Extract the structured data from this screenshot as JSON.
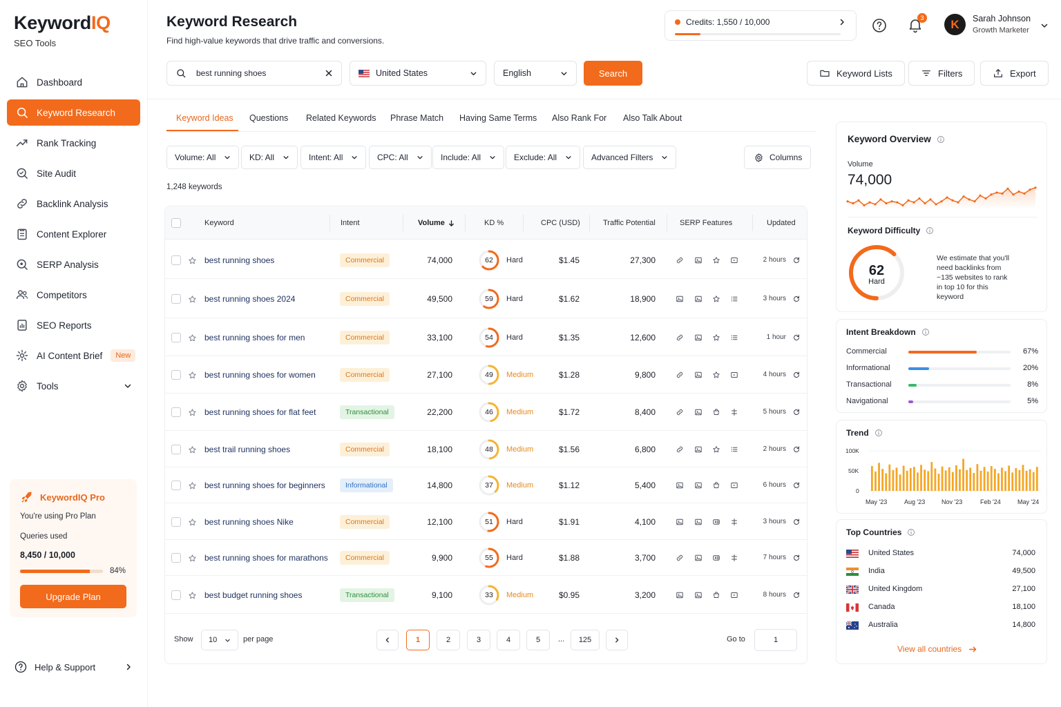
{
  "brand": {
    "name_main": "Keyword",
    "name_accent": "IQ",
    "subtitle": "SEO Tools"
  },
  "nav": {
    "items": [
      {
        "label": "Dashboard",
        "icon": "home-icon"
      },
      {
        "label": "Keyword Research",
        "icon": "search-icon",
        "active": true
      },
      {
        "label": "Rank Tracking",
        "icon": "trend-up-icon"
      },
      {
        "label": "Site Audit",
        "icon": "site-audit-icon"
      },
      {
        "label": "Backlink Analysis",
        "icon": "link-icon"
      },
      {
        "label": "Content Explorer",
        "icon": "document-icon"
      },
      {
        "label": "SERP Analysis",
        "icon": "serp-search-icon"
      },
      {
        "label": "Competitors",
        "icon": "users-icon"
      },
      {
        "label": "SEO Reports",
        "icon": "report-icon"
      },
      {
        "label": "AI Content Brief",
        "icon": "ai-brief-icon",
        "badge": "New"
      },
      {
        "label": "Tools",
        "icon": "tools-icon"
      }
    ]
  },
  "pro": {
    "title": "KeywordIQ Pro",
    "plan_text": "You're using Pro Plan",
    "queries_label": "Queries used",
    "queries_count": "8,450 / 10,000",
    "queries_pct": "84%",
    "queries_fraction": 0.84,
    "upgrade_label": "Upgrade Plan"
  },
  "help_label": "Help & Support",
  "header": {
    "title": "Keyword Research",
    "subtitle": "Find high-value keywords that drive traffic and conversions.",
    "credits_label": "Credits: 1,550 / 10,000",
    "credits_fraction": 0.155,
    "notification_count": "3",
    "avatar_letter": "K",
    "user_name": "Sarah Johnson",
    "user_role": "Growth Marketer"
  },
  "search": {
    "query": "best running shoes",
    "country": "United States",
    "language": "English",
    "button": "Search"
  },
  "toolbar": {
    "keyword_lists": "Keyword Lists",
    "filters": "Filters",
    "export": "Export"
  },
  "tabs": [
    "Keyword Ideas",
    "Questions",
    "Related Keywords",
    "Phrase Match",
    "Having Same Terms",
    "Also Rank For",
    "Also Talk About"
  ],
  "filters": [
    "Volume: All",
    "KD: All",
    "Intent: All",
    "CPC: All",
    "Include: All",
    "Exclude: All",
    "Advanced Filters"
  ],
  "columns_label": "Columns",
  "keyword_count": "1,248 keywords",
  "table": {
    "headers": {
      "keyword": "Keyword",
      "intent": "Intent",
      "volume": "Volume",
      "kd": "KD %",
      "cpc": "CPC (USD)",
      "traffic": "Traffic Potential",
      "serp": "SERP Features",
      "updated": "Updated"
    },
    "rows": [
      {
        "keyword": "best running shoes",
        "intent": "Commercial",
        "volume": "74,000",
        "kd": "62",
        "kd_label": "Hard",
        "cpc": "$1.45",
        "traffic": "27,300",
        "updated": "2 hours",
        "serp": [
          "link-icon",
          "image-icon",
          "star-icon",
          "video-icon"
        ]
      },
      {
        "keyword": "best running shoes 2024",
        "intent": "Commercial",
        "volume": "49,500",
        "kd": "59",
        "kd_label": "Hard",
        "cpc": "$1.62",
        "traffic": "18,900",
        "updated": "3 hours",
        "serp": [
          "image-icon",
          "image-icon",
          "star-icon",
          "list-icon"
        ]
      },
      {
        "keyword": "best running shoes for men",
        "intent": "Commercial",
        "volume": "33,100",
        "kd": "54",
        "kd_label": "Hard",
        "cpc": "$1.35",
        "traffic": "12,600",
        "updated": "1 hour",
        "serp": [
          "link-icon",
          "image-icon",
          "star-icon",
          "list-icon"
        ]
      },
      {
        "keyword": "best running shoes for women",
        "intent": "Commercial",
        "volume": "27,100",
        "kd": "49",
        "kd_label": "Medium",
        "cpc": "$1.28",
        "traffic": "9,800",
        "updated": "4 hours",
        "serp": [
          "link-icon",
          "image-icon",
          "star-icon",
          "video-icon"
        ]
      },
      {
        "keyword": "best running shoes for flat feet",
        "intent": "Transactional",
        "volume": "22,200",
        "kd": "46",
        "kd_label": "Medium",
        "cpc": "$1.72",
        "traffic": "8,400",
        "updated": "5 hours",
        "serp": [
          "link-icon",
          "image-icon",
          "shopping-icon",
          "sitelinks-icon"
        ]
      },
      {
        "keyword": "best trail running shoes",
        "intent": "Commercial",
        "volume": "18,100",
        "kd": "48",
        "kd_label": "Medium",
        "cpc": "$1.56",
        "traffic": "6,800",
        "updated": "2 hours",
        "serp": [
          "link-icon",
          "image-icon",
          "star-icon",
          "list-icon"
        ]
      },
      {
        "keyword": "best running shoes for beginners",
        "intent": "Informational",
        "volume": "14,800",
        "kd": "37",
        "kd_label": "Medium",
        "cpc": "$1.12",
        "traffic": "5,400",
        "updated": "6 hours",
        "serp": [
          "image-icon",
          "image-icon",
          "shopping-icon",
          "video-icon"
        ]
      },
      {
        "keyword": "best running shoes Nike",
        "intent": "Commercial",
        "volume": "12,100",
        "kd": "51",
        "kd_label": "Hard",
        "cpc": "$1.91",
        "traffic": "4,100",
        "updated": "3 hours",
        "serp": [
          "image-icon",
          "image-icon",
          "ad-icon",
          "sitelinks-icon"
        ]
      },
      {
        "keyword": "best running shoes for marathons",
        "intent": "Commercial",
        "volume": "9,900",
        "kd": "55",
        "kd_label": "Hard",
        "cpc": "$1.88",
        "traffic": "3,700",
        "updated": "7 hours",
        "serp": [
          "link-icon",
          "image-icon",
          "ad-icon",
          "sitelinks-icon"
        ]
      },
      {
        "keyword": "best budget running shoes",
        "intent": "Transactional",
        "volume": "9,100",
        "kd": "33",
        "kd_label": "Medium",
        "cpc": "$0.95",
        "traffic": "3,200",
        "updated": "8 hours",
        "serp": [
          "image-icon",
          "image-icon",
          "shopping-icon",
          "video-icon"
        ]
      }
    ]
  },
  "pagination": {
    "show_label": "Show",
    "per_page_value": "10",
    "per_page_label": "per page",
    "pages": [
      "1",
      "2",
      "3",
      "4",
      "5"
    ],
    "ellipsis": "...",
    "last_page": "125",
    "goto_label": "Go to",
    "goto_value": "1"
  },
  "overview": {
    "title": "Keyword Overview",
    "volume_label": "Volume",
    "volume_value": "74,000",
    "sparkline": [
      40,
      38,
      41,
      36,
      39,
      37,
      42,
      38,
      40,
      39,
      36,
      41,
      39,
      43,
      38,
      42,
      37,
      40,
      44,
      41,
      39,
      45,
      42,
      40,
      46,
      43,
      47,
      49,
      48,
      53,
      47,
      50,
      48,
      52,
      54
    ],
    "difficulty_title": "Keyword Difficulty",
    "difficulty_value": "62",
    "difficulty_score": 62,
    "difficulty_label": "Hard",
    "difficulty_note": "We estimate that you'll need backlinks from ~135 websites to rank in top 10 for this keyword"
  },
  "intent_breakdown": {
    "title": "Intent Breakdown",
    "items": [
      {
        "name": "Commercial",
        "pct": "67%",
        "value": 67,
        "color": "#f26a1b"
      },
      {
        "name": "Informational",
        "pct": "20%",
        "value": 20,
        "color": "#3b8ee6"
      },
      {
        "name": "Transactional",
        "pct": "8%",
        "value": 8,
        "color": "#3cb86a"
      },
      {
        "name": "Navigational",
        "pct": "5%",
        "value": 5,
        "color": "#9b59d0"
      }
    ]
  },
  "trend": {
    "title": "Trend",
    "y_ticks": [
      "100K",
      "50K",
      "0"
    ],
    "x_ticks": [
      "May '23",
      "Aug '23",
      "Nov '23",
      "Feb '24",
      "May '24"
    ]
  },
  "chart_data": {
    "type": "bar",
    "title": "Trend",
    "ylim": [
      0,
      100000
    ],
    "x_ticks": [
      "May '23",
      "Aug '23",
      "Nov '23",
      "Feb '24",
      "May '24"
    ],
    "values": [
      62000,
      48000,
      70000,
      55000,
      44000,
      66000,
      52000,
      58000,
      41000,
      63000,
      50000,
      57000,
      60000,
      46000,
      65000,
      53000,
      49000,
      72000,
      56000,
      43000,
      61000,
      51000,
      59000,
      47000,
      64000,
      54000,
      80000,
      52000,
      58000,
      45000,
      67000,
      50000,
      60000,
      48000,
      62000,
      55000,
      44000,
      58000,
      49000,
      63000,
      46000,
      57000,
      52000,
      65000,
      50000,
      54000,
      47000,
      60000
    ]
  },
  "countries": {
    "title": "Top Countries",
    "items": [
      {
        "name": "United States",
        "value": "74,000",
        "flag": "us-flag"
      },
      {
        "name": "India",
        "value": "49,500",
        "flag": "in-flag"
      },
      {
        "name": "United Kingdom",
        "value": "27,100",
        "flag": "uk-flag"
      },
      {
        "name": "Canada",
        "value": "18,100",
        "flag": "ca-flag"
      },
      {
        "name": "Australia",
        "value": "14,800",
        "flag": "au-flag"
      }
    ],
    "view_all": "View all countries"
  },
  "colors": {
    "accent": "#f26a1b",
    "link": "#1c2f5e",
    "medium": "#e8891c",
    "hard_ring": "#f26a1b",
    "medium_ring": "#f5b432"
  }
}
